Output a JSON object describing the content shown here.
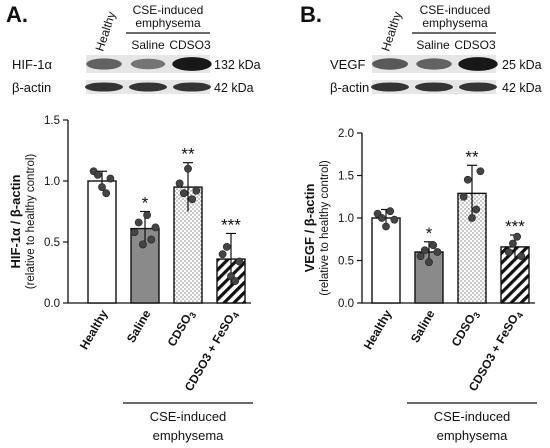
{
  "panels": [
    {
      "id": "a",
      "letter": "A.",
      "blot": {
        "healthy_label": "Healthy",
        "group_label": "CSE-induced\nemphysema",
        "lanes": [
          "Saline",
          "CDSO3"
        ],
        "rows": [
          {
            "protein": "HIF-1α",
            "kda": "132 kDa",
            "intensity": [
              0.55,
              0.45,
              0.95
            ]
          },
          {
            "protein": "β-actin",
            "kda": "42 kDa",
            "intensity": [
              0.8,
              0.8,
              0.8
            ]
          }
        ]
      },
      "chart_data": {
        "type": "bar",
        "categories": [
          "Healthy",
          "Saline",
          "CDSO3",
          "CDSO3 + FeSO4"
        ],
        "values": [
          1.0,
          0.61,
          0.95,
          0.36
        ],
        "errors": [
          0.08,
          0.14,
          0.2,
          0.21
        ],
        "significance": [
          "",
          "*",
          "**",
          "***"
        ],
        "points": [
          [
            1.08,
            1.05,
            0.95,
            0.9,
            1.02
          ],
          [
            0.58,
            0.66,
            0.48,
            0.72,
            0.52,
            0.62
          ],
          [
            0.98,
            0.9,
            1.1,
            0.85,
            0.92
          ],
          [
            0.4,
            0.46,
            0.22,
            0.18,
            0.34
          ]
        ],
        "fills": [
          "white",
          "gray",
          "dotted",
          "hatched"
        ],
        "ylabel": "HIF-1α / β-actin",
        "ylabel_sub": "(relative to healthy control)",
        "ylim": [
          0,
          1.5
        ],
        "yticks": [
          "0.0",
          "0.5",
          "1.0",
          "1.5"
        ],
        "group_label": "CSE-induced\nemphysema"
      }
    },
    {
      "id": "b",
      "letter": "B.",
      "blot": {
        "healthy_label": "Healthy",
        "group_label": "CSE-induced\nemphysema",
        "lanes": [
          "Saline",
          "CDSO3"
        ],
        "rows": [
          {
            "protein": "VEGF",
            "kda": "25 kDa",
            "intensity": [
              0.6,
              0.55,
              0.95
            ]
          },
          {
            "protein": "β-actin",
            "kda": "42 kDa",
            "intensity": [
              0.8,
              0.8,
              0.8
            ]
          }
        ]
      },
      "chart_data": {
        "type": "bar",
        "categories": [
          "Healthy",
          "Saline",
          "CDSO3",
          "CDSO3 + FeSO4"
        ],
        "values": [
          1.0,
          0.6,
          1.29,
          0.66
        ],
        "errors": [
          0.1,
          0.12,
          0.33,
          0.14
        ],
        "significance": [
          "",
          "*",
          "**",
          "***"
        ],
        "points": [
          [
            1.05,
            1.0,
            0.9,
            1.08,
            0.98
          ],
          [
            0.55,
            0.62,
            0.48,
            0.68,
            0.6
          ],
          [
            1.25,
            1.45,
            1.0,
            1.1,
            1.55
          ],
          [
            0.6,
            0.7,
            0.78,
            0.55
          ]
        ],
        "fills": [
          "white",
          "gray",
          "dotted",
          "hatched"
        ],
        "ylabel": "VEGF / β-actin",
        "ylabel_sub": "(relative to healthy control)",
        "ylim": [
          0,
          2.0
        ],
        "yticks": [
          "0.0",
          "0.5",
          "1.0",
          "1.5",
          "2.0"
        ],
        "group_label": "CSE-induced\nemphysema"
      }
    }
  ]
}
